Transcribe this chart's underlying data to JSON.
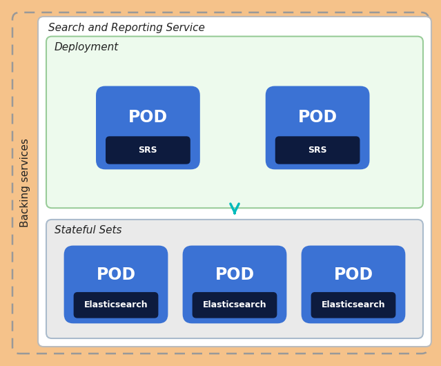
{
  "figsize": [
    6.39,
    5.3
  ],
  "dpi": 100,
  "bg_outer": "#F5C28A",
  "bg_inner": "#FFFFFF",
  "bg_deployment": "#EDFAED",
  "bg_stateful": "#EAEAEA",
  "pod_blue": "#3B72D4",
  "pod_label_bg": "#0D1B3E",
  "text_white": "#FFFFFF",
  "text_dark": "#222222",
  "arrow_color": "#00BBBB",
  "outer_label": "Backing services",
  "inner_label": "Search and Reporting Service",
  "deployment_label": "Deployment",
  "stateful_label": "Stateful Sets",
  "border_gray": "#AAAAAA",
  "border_green": "#99CC99",
  "border_blue_gray": "#AABBCC"
}
